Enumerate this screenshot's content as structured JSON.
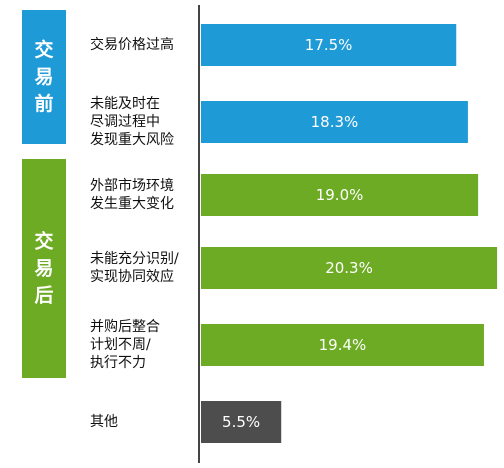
{
  "chart_data": {
    "type": "bar",
    "orientation": "horizontal",
    "groups": [
      {
        "label": "交易前",
        "color": "#1e9ad6"
      },
      {
        "label": "交易后",
        "color": "#6cab23"
      }
    ],
    "categories": [
      "交易价格过高",
      "未能及时在\n尽调过程中\n发现重大风险",
      "外部市场环境\n发生重大变化",
      "未能充分识别/\n实现协同效应",
      "并购后整合\n计划不周/\n执行不力",
      "其他"
    ],
    "values": [
      17.5,
      18.3,
      19.0,
      20.3,
      19.4,
      5.5
    ],
    "value_labels": [
      "17.5%",
      "18.3%",
      "19.0%",
      "20.3%",
      "19.4%",
      "5.5%"
    ],
    "bar_colors": [
      "#1e9ad6",
      "#1e9ad6",
      "#6cab23",
      "#6cab23",
      "#6cab23",
      "#4d4d4d"
    ],
    "xlim": [
      0,
      20.5
    ],
    "grid": false,
    "legend": "none"
  }
}
